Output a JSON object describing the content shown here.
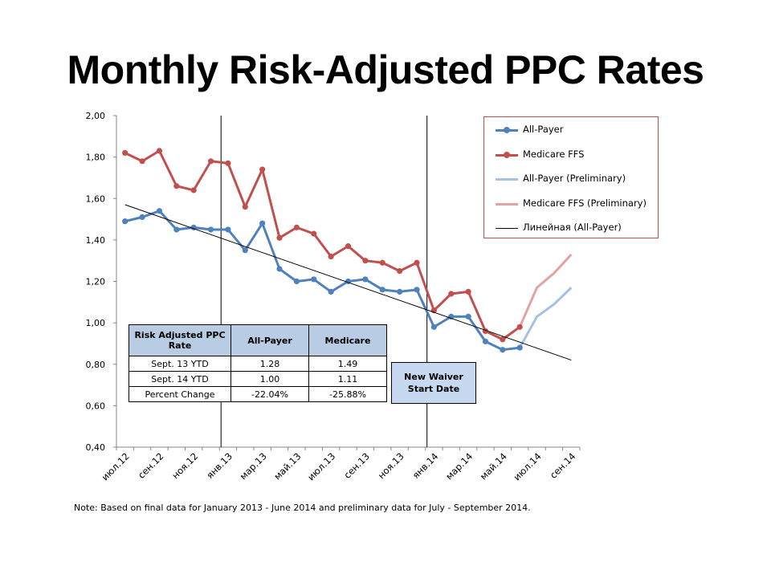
{
  "title": "Monthly Risk-Adjusted PPC Rates",
  "note": "Note: Based on final data for January 2013 - June 2014 and preliminary data for July - September 2014.",
  "colors": {
    "all_payer": "#4f81bd",
    "medicare": "#c0504d",
    "all_payer_prelim": "#a7c0e3",
    "medicare_prelim": "#e0a4a3",
    "trend": "#000000",
    "table_header": "#b8cce4",
    "waiver_box": "#c6d9f1"
  },
  "legend": [
    {
      "label": "All-Payer",
      "key": "all_payer",
      "marker": true
    },
    {
      "label": "Medicare FFS",
      "key": "medicare",
      "marker": true
    },
    {
      "label": "All-Payer (Preliminary)",
      "key": "all_payer_prelim",
      "marker": false
    },
    {
      "label": "Medicare FFS (Preliminary)",
      "key": "medicare_prelim",
      "marker": false
    },
    {
      "label": "Линейная (All-Payer)",
      "key": "trend",
      "marker": false
    }
  ],
  "table": {
    "headers": [
      "Risk Adjusted PPC Rate",
      "All-Payer",
      "Medicare"
    ],
    "rows": [
      [
        "Sept. 13 YTD",
        "1.28",
        "1.49"
      ],
      [
        "Sept. 14 YTD",
        "1.00",
        "1.11"
      ],
      [
        "Percent Change",
        "-22.04%",
        "-25.88%"
      ]
    ]
  },
  "waiver_label_line1": "New Waiver",
  "waiver_label_line2": "Start Date",
  "chart_data": {
    "type": "line",
    "title": "Monthly Risk-Adjusted PPC Rates",
    "xlabel": "",
    "ylabel": "",
    "ylim": [
      0.4,
      2.0
    ],
    "y_ticks": [
      "0,40",
      "0,60",
      "0,80",
      "1,00",
      "1,20",
      "1,40",
      "1,60",
      "1,80",
      "2,00"
    ],
    "y_tick_values": [
      0.4,
      0.6,
      0.8,
      1.0,
      1.2,
      1.4,
      1.6,
      1.8,
      2.0
    ],
    "x": [
      "июл.12",
      "авг.12",
      "сен.12",
      "окт.12",
      "ноя.12",
      "дек.12",
      "янв.13",
      "фев.13",
      "мар.13",
      "апр.13",
      "май.13",
      "июн.13",
      "июл.13",
      "авг.13",
      "сен.13",
      "окт.13",
      "ноя.13",
      "дек.13",
      "янв.14",
      "фев.14",
      "мар.14",
      "апр.14",
      "май.14",
      "июн.14",
      "июл.14",
      "авг.14",
      "сен.14"
    ],
    "x_tick_labels": [
      "июл.12",
      "сен.12",
      "ноя.12",
      "янв.13",
      "мар.13",
      "май.13",
      "июл.13",
      "сен.13",
      "ноя.13",
      "янв.14",
      "мар.14",
      "май.14",
      "июл.14",
      "сен.14"
    ],
    "series": [
      {
        "name": "All-Payer",
        "key": "all_payer",
        "values": [
          1.49,
          1.51,
          1.54,
          1.45,
          1.46,
          1.45,
          1.45,
          1.35,
          1.48,
          1.26,
          1.2,
          1.21,
          1.15,
          1.2,
          1.21,
          1.16,
          1.15,
          1.16,
          0.98,
          1.03,
          1.03,
          0.91,
          0.87,
          0.88,
          null,
          null,
          null
        ]
      },
      {
        "name": "Medicare FFS",
        "key": "medicare",
        "values": [
          1.82,
          1.78,
          1.83,
          1.66,
          1.64,
          1.78,
          1.77,
          1.56,
          1.74,
          1.41,
          1.46,
          1.43,
          1.32,
          1.37,
          1.3,
          1.29,
          1.25,
          1.29,
          1.06,
          1.14,
          1.15,
          0.96,
          0.92,
          0.98,
          null,
          null,
          null
        ]
      },
      {
        "name": "All-Payer (Preliminary)",
        "key": "all_payer_prelim",
        "values": [
          null,
          null,
          null,
          null,
          null,
          null,
          null,
          null,
          null,
          null,
          null,
          null,
          null,
          null,
          null,
          null,
          null,
          null,
          null,
          null,
          null,
          null,
          null,
          0.88,
          1.03,
          1.09,
          1.17
        ]
      },
      {
        "name": "Medicare FFS (Preliminary)",
        "key": "medicare_prelim",
        "values": [
          null,
          null,
          null,
          null,
          null,
          null,
          null,
          null,
          null,
          null,
          null,
          null,
          null,
          null,
          null,
          null,
          null,
          null,
          null,
          null,
          null,
          null,
          null,
          0.98,
          1.17,
          1.24,
          1.33
        ]
      },
      {
        "name": "Линейная (All-Payer)",
        "key": "trend",
        "type": "linear-trend",
        "values": [
          1.57,
          null,
          null,
          null,
          null,
          null,
          null,
          null,
          null,
          null,
          null,
          null,
          null,
          null,
          null,
          null,
          null,
          null,
          null,
          null,
          null,
          null,
          null,
          null,
          null,
          null,
          0.82
        ]
      }
    ],
    "vertical_markers": [
      "янв.13",
      "янв.14"
    ],
    "grid": false,
    "legend_position": "top-right"
  }
}
